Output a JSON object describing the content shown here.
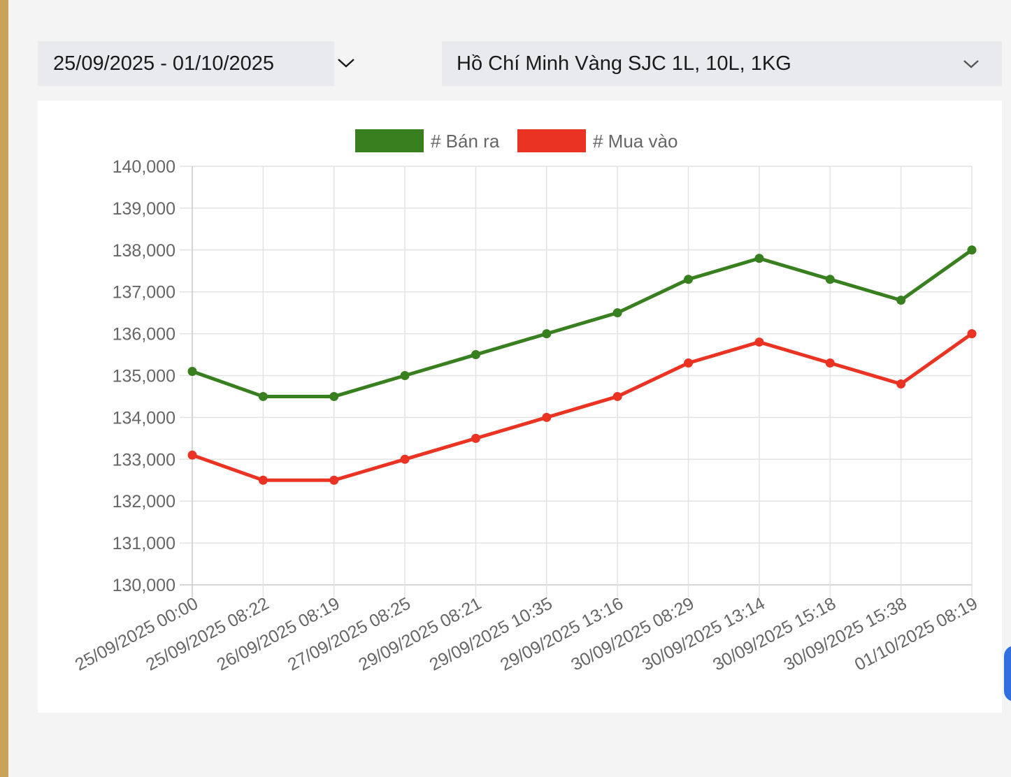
{
  "filters": {
    "date_range": "25/09/2025 - 01/10/2025",
    "product": "Hồ Chí Minh Vàng SJC 1L, 10L, 1KG"
  },
  "chart_data": {
    "type": "line",
    "title": "",
    "xlabel": "",
    "ylabel": "",
    "ylim": [
      130000,
      140000
    ],
    "yticks": [
      130000,
      131000,
      132000,
      133000,
      134000,
      135000,
      136000,
      137000,
      138000,
      139000,
      140000
    ],
    "ytick_labels": [
      "130,000",
      "131,000",
      "132,000",
      "133,000",
      "134,000",
      "135,000",
      "136,000",
      "137,000",
      "138,000",
      "139,000",
      "140,000"
    ],
    "grid": true,
    "legend_position": "top-center",
    "categories": [
      "25/09/2025 00:00",
      "25/09/2025 08:22",
      "26/09/2025 08:19",
      "27/09/2025 08:25",
      "29/09/2025 08:21",
      "29/09/2025 10:35",
      "29/09/2025 13:16",
      "30/09/2025 08:29",
      "30/09/2025 13:14",
      "30/09/2025 15:18",
      "30/09/2025 15:38",
      "01/10/2025 08:19"
    ],
    "series": [
      {
        "name": "# Bán ra",
        "color": "#38801f",
        "values": [
          135100,
          134500,
          134500,
          135000,
          135500,
          136000,
          136500,
          137300,
          137800,
          137300,
          136800,
          138000
        ]
      },
      {
        "name": "# Mua vào",
        "color": "#ea3323",
        "values": [
          133100,
          132500,
          132500,
          133000,
          133500,
          134000,
          134500,
          135300,
          135800,
          135300,
          134800,
          136000
        ]
      }
    ]
  }
}
